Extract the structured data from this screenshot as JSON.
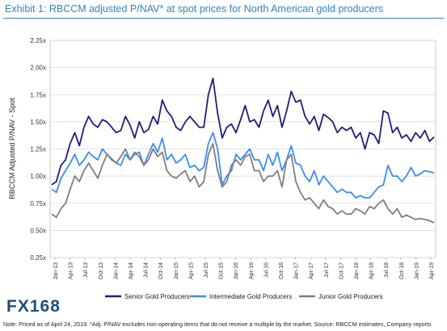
{
  "title": "Exhibit 1: RBCCM adjusted P/NAV* at spot prices for North American gold producers",
  "logo_text": "FX168",
  "footnote": "Note: Priced as of April 24, 2019. *Adj. P/NAV excludes non-operating items that do not receive a multiple by the market. Source: RBCCM estimates, Company reports",
  "chart_data": {
    "type": "line",
    "ylabel": "RBCCM Adjusted P/NAV - Spot",
    "xlabel": "",
    "ylim": [
      0.25,
      2.25
    ],
    "y_ticks": [
      "0.25x",
      "0.50x",
      "0.75x",
      "1.00x",
      "1.25x",
      "1.50x",
      "1.75x",
      "2.00x",
      "2.25x"
    ],
    "x_ticks": [
      "Jan-13",
      "Apr-13",
      "Jul-13",
      "Oct-13",
      "Jan-14",
      "Apr-14",
      "Jul-14",
      "Oct-14",
      "Jan-15",
      "Apr-15",
      "Jul-15",
      "Oct-15",
      "Jan-16",
      "Apr-16",
      "Jul-16",
      "Oct-16",
      "Jan-17",
      "Apr-17",
      "Jul-17",
      "Oct-17",
      "Jan-18",
      "Apr-18",
      "Jul-18",
      "Oct-18",
      "Jan-19",
      "Apr-19"
    ],
    "grid": "horizontal",
    "legend_position": "bottom",
    "series": [
      {
        "name": "Senior Gold Producers",
        "color": "#1f1f7a",
        "values": [
          0.92,
          0.95,
          1.1,
          1.15,
          1.3,
          1.4,
          1.28,
          1.45,
          1.55,
          1.48,
          1.45,
          1.52,
          1.5,
          1.45,
          1.4,
          1.42,
          1.55,
          1.47,
          1.35,
          1.5,
          1.4,
          1.43,
          1.55,
          1.48,
          1.7,
          1.6,
          1.55,
          1.45,
          1.42,
          1.5,
          1.55,
          1.5,
          1.45,
          1.45,
          1.75,
          1.9,
          1.58,
          1.35,
          1.45,
          1.48,
          1.4,
          1.52,
          1.65,
          1.5,
          1.52,
          1.45,
          1.6,
          1.7,
          1.55,
          1.65,
          1.45,
          1.6,
          1.78,
          1.68,
          1.7,
          1.55,
          1.48,
          1.55,
          1.42,
          1.57,
          1.54,
          1.5,
          1.4,
          1.45,
          1.42,
          1.45,
          1.35,
          1.4,
          1.25,
          1.4,
          1.38,
          1.3,
          1.6,
          1.58,
          1.4,
          1.45,
          1.35,
          1.38,
          1.32,
          1.4,
          1.35,
          1.42,
          1.32,
          1.36
        ]
      },
      {
        "name": "Intermediate Gold Producers",
        "color": "#3b8df0",
        "values": [
          0.88,
          0.85,
          0.98,
          1.05,
          1.12,
          1.2,
          1.1,
          1.15,
          1.22,
          1.18,
          1.15,
          1.25,
          1.2,
          1.16,
          1.12,
          1.1,
          1.2,
          1.15,
          1.22,
          1.18,
          1.1,
          1.2,
          1.3,
          1.22,
          1.35,
          1.15,
          1.2,
          1.12,
          1.15,
          1.2,
          1.08,
          1.1,
          1.05,
          1.08,
          1.3,
          1.4,
          1.25,
          0.92,
          1.0,
          1.05,
          1.2,
          1.15,
          1.2,
          1.25,
          1.15,
          1.15,
          1.05,
          1.2,
          1.1,
          1.22,
          1.05,
          1.15,
          1.28,
          1.12,
          1.1,
          1.0,
          0.95,
          1.05,
          0.92,
          1.0,
          0.95,
          0.9,
          0.85,
          0.88,
          0.85,
          0.85,
          0.8,
          0.82,
          0.8,
          0.8,
          0.85,
          0.9,
          0.92,
          1.1,
          1.0,
          1.0,
          0.95,
          1.0,
          1.08,
          1.0,
          1.02,
          1.05,
          1.04,
          1.03
        ]
      },
      {
        "name": "Junior Gold Producers",
        "color": "#7f7f7f",
        "values": [
          0.65,
          0.62,
          0.7,
          0.75,
          0.88,
          1.0,
          0.95,
          1.05,
          1.12,
          1.05,
          0.98,
          1.1,
          1.2,
          1.15,
          1.12,
          1.18,
          1.25,
          1.15,
          1.2,
          1.22,
          1.1,
          1.15,
          1.25,
          1.18,
          1.22,
          1.05,
          1.0,
          0.98,
          1.02,
          1.05,
          0.95,
          1.0,
          0.9,
          0.95,
          1.2,
          1.3,
          1.05,
          0.9,
          0.95,
          1.1,
          1.15,
          1.1,
          1.18,
          1.2,
          1.05,
          1.05,
          0.95,
          1.0,
          1.0,
          1.05,
          0.9,
          1.15,
          1.2,
          0.95,
          0.85,
          0.78,
          0.8,
          0.75,
          0.7,
          0.78,
          0.72,
          0.7,
          0.65,
          0.68,
          0.65,
          0.65,
          0.7,
          0.68,
          0.65,
          0.72,
          0.7,
          0.75,
          0.78,
          0.7,
          0.65,
          0.7,
          0.62,
          0.64,
          0.62,
          0.6,
          0.61,
          0.6,
          0.59,
          0.57
        ]
      }
    ]
  }
}
